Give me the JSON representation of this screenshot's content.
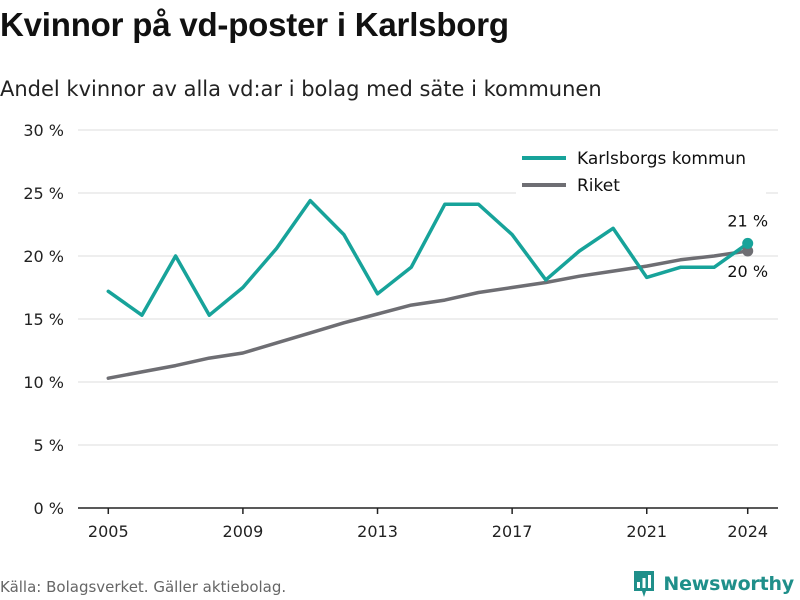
{
  "header": {
    "title": "Kvinnor på vd-poster i Karlsborg",
    "subtitle": "Andel kvinnor av alla vd:ar i bolag med säte i kommunen"
  },
  "footer": {
    "source": "Källa: Bolagsverket. Gäller aktiebolag.",
    "brand": "Newsworthy"
  },
  "colors": {
    "karlsborg": "#17a39a",
    "riket": "#6e6e73",
    "grid": "#dddddd",
    "brand": "#1f8f8a"
  },
  "chart_data": {
    "type": "line",
    "x": [
      2005,
      2006,
      2007,
      2008,
      2009,
      2010,
      2011,
      2012,
      2013,
      2014,
      2015,
      2016,
      2017,
      2018,
      2019,
      2020,
      2021,
      2022,
      2023,
      2024
    ],
    "xticks": [
      2005,
      2009,
      2013,
      2017,
      2021,
      2024
    ],
    "yticks": [
      0,
      5,
      10,
      15,
      20,
      25,
      30
    ],
    "ytick_labels": [
      "0 %",
      "5 %",
      "10 %",
      "15 %",
      "20 %",
      "25 %",
      "30 %"
    ],
    "xlim": [
      2004.1,
      2024.9
    ],
    "ylim": [
      0,
      30
    ],
    "grid": true,
    "legend_position": "top-right",
    "series": [
      {
        "name": "Karlsborgs kommun",
        "color": "#17a39a",
        "values": [
          17.2,
          15.3,
          20.0,
          15.3,
          17.5,
          20.6,
          24.4,
          21.7,
          17.0,
          19.1,
          24.1,
          24.1,
          21.7,
          18.1,
          20.4,
          22.2,
          18.3,
          19.1,
          19.1,
          21.0
        ],
        "end_label": "21 %"
      },
      {
        "name": "Riket",
        "color": "#6e6e73",
        "values": [
          10.3,
          10.8,
          11.3,
          11.9,
          12.3,
          13.1,
          13.9,
          14.7,
          15.4,
          16.1,
          16.5,
          17.1,
          17.5,
          17.9,
          18.4,
          18.8,
          19.2,
          19.7,
          20.0,
          20.4
        ],
        "end_label": "20 %"
      }
    ]
  }
}
